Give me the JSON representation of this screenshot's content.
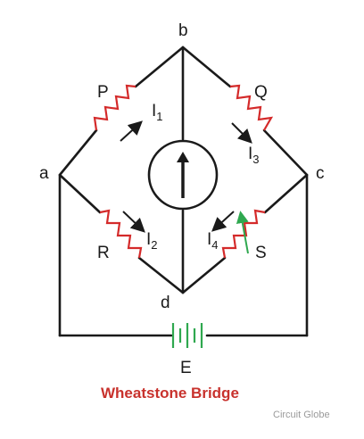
{
  "nodes": {
    "a": "a",
    "b": "b",
    "c": "c",
    "d": "d"
  },
  "components": {
    "P": "P",
    "Q": "Q",
    "R": "R",
    "S": "S",
    "E": "E"
  },
  "currents": [
    {
      "main": "I",
      "sub": "1"
    },
    {
      "main": "I",
      "sub": "3"
    },
    {
      "main": "I",
      "sub": "2"
    },
    {
      "main": "I",
      "sub": "4"
    }
  ],
  "title": "Wheatstone Bridge",
  "watermark": "Circuit Globe",
  "colors": {
    "resistor": "#d42a2a",
    "battery": "#2fa84f",
    "title": "#c8322d",
    "wire": "#1a1a1a"
  },
  "icons": {
    "galvanometer": "galvanometer-icon",
    "battery": "battery-icon",
    "variable_arrow": "variable-arrow-icon"
  }
}
